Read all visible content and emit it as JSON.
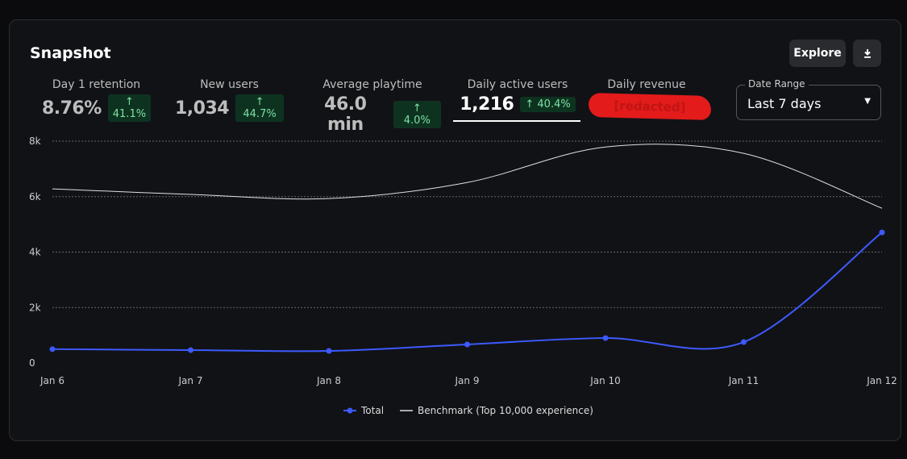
{
  "header": {
    "title": "Snapshot",
    "explore_label": "Explore",
    "download_icon": "download-icon"
  },
  "metrics": [
    {
      "label": "Day 1 retention",
      "value": "8.76%",
      "change": "↑ 41.1%"
    },
    {
      "label": "New users",
      "value": "1,034",
      "change": "↑ 44.7%"
    },
    {
      "label": "Average playtime",
      "value": "46.0 min",
      "change": "↑ 4.0%"
    },
    {
      "label": "Daily active users",
      "value": "1,216",
      "change": "↑ 40.4%",
      "selected": true
    },
    {
      "label": "Daily revenue",
      "value": "[redacted]"
    }
  ],
  "date_range": {
    "label": "Date Range",
    "value": "Last 7 days"
  },
  "colors": {
    "total": "#3d5afe",
    "benchmark": "#e0e0e0",
    "badge_bg": "#0d3320",
    "badge_text": "#7fe0a4",
    "redaction": "#e31b1b"
  },
  "chart_data": {
    "type": "line",
    "categories": [
      "Jan 6",
      "Jan 7",
      "Jan 8",
      "Jan 9",
      "Jan 10",
      "Jan 11",
      "Jan 12"
    ],
    "yticks": [
      "0",
      "2k",
      "4k",
      "6k",
      "8k"
    ],
    "ylim": [
      0,
      8000
    ],
    "grid": true,
    "legend_placement": "bottom",
    "series": [
      {
        "name": "Total",
        "values": [
          500,
          465,
          436,
          670,
          900,
          755,
          4710
        ]
      },
      {
        "name": "Benchmark (Top 10,000 experience)",
        "values": [
          6280,
          6080,
          5930,
          6510,
          7790,
          7560,
          5580
        ]
      }
    ]
  }
}
